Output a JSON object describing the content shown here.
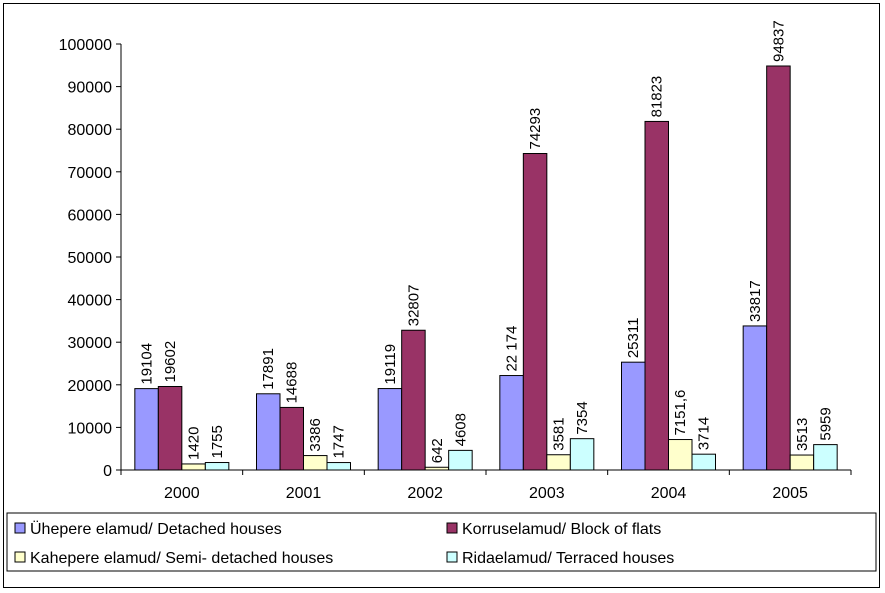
{
  "chart_data": {
    "type": "bar",
    "title": "",
    "xlabel": "",
    "ylabel": "",
    "categories": [
      "2000",
      "2001",
      "2002",
      "2003",
      "2004",
      "2005"
    ],
    "ylim": [
      0,
      100000
    ],
    "yticks": [
      "0",
      "10000",
      "20000",
      "30000",
      "40000",
      "50000",
      "60000",
      "70000",
      "80000",
      "90000",
      "100000"
    ],
    "grid": false,
    "legend_position": "bottom",
    "series": [
      {
        "name": "Ühepere elamud/ Detached houses",
        "color": "#9999ff",
        "values": [
          19104,
          17891,
          19119,
          22174,
          25311,
          33817
        ],
        "labels": [
          "19104",
          "17891",
          "19119",
          "22 174",
          "25311",
          "33817"
        ]
      },
      {
        "name": "Korruselamud/ Block of flats",
        "color": "#993366",
        "values": [
          19602,
          14688,
          32807,
          74293,
          81823,
          94837
        ],
        "labels": [
          "19602",
          "14688",
          "32807",
          "74293",
          "81823",
          "94837"
        ]
      },
      {
        "name": "Kahepere elamud/ Semi- detached houses",
        "color": "#ffffcc",
        "values": [
          1420,
          3386,
          642,
          3581,
          7151.6,
          3513
        ],
        "labels": [
          "1420",
          "3386",
          "642",
          "3581",
          "7151,6",
          "3513"
        ]
      },
      {
        "name": "Ridaelamud/ Terraced houses",
        "color": "#ccffff",
        "values": [
          1755,
          1747,
          4608,
          7354,
          3714,
          5959
        ],
        "labels": [
          "1755",
          "1747",
          "4608",
          "7354",
          "3714",
          "5959"
        ]
      }
    ]
  }
}
